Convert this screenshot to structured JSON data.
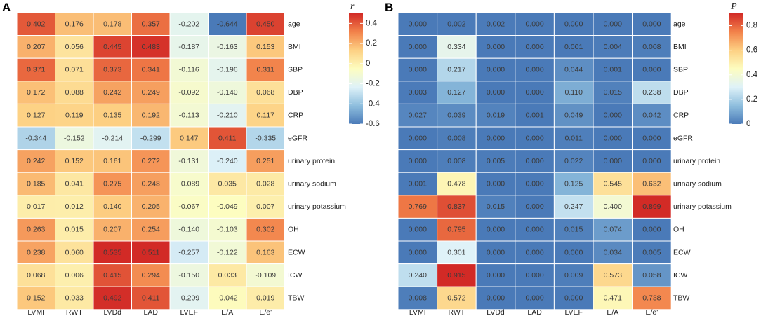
{
  "chart_data": [
    {
      "type": "heatmap",
      "panel": "A",
      "title": "",
      "legend_title": "r",
      "columns": [
        "LVMI",
        "RWT",
        "LVDd",
        "LAD",
        "LVEF",
        "E/A",
        "E/e'"
      ],
      "rows": [
        "age",
        "BMI",
        "SBP",
        "DBP",
        "CRP",
        "eGFR",
        "urinary protein",
        "urinary sodium",
        "urinary potassium",
        "OH",
        "ECW",
        "ICW",
        "TBW"
      ],
      "cell_labels": [
        [
          "0.402",
          "0.176",
          "0.178",
          "0.357",
          "-0.202",
          "-0.644",
          "0.450"
        ],
        [
          "0.207",
          "0.056",
          "0.445",
          "0.483",
          "-0.187",
          "-0.163",
          "0.153"
        ],
        [
          "0.371",
          "0.071",
          "0.373",
          "0.341",
          "-0.116",
          "-0.196",
          "0.311"
        ],
        [
          "0.172",
          "0.088",
          "0.242",
          "0.249",
          "-0.092",
          "-0.140",
          "0.068"
        ],
        [
          "0.127",
          "0.119",
          "0.135",
          "0.192",
          "-0.113",
          "-0.210",
          "0.117"
        ],
        [
          "-0.344",
          "-0.152",
          "-0.214",
          "-0.299",
          "0.147",
          "0.411",
          "-0.335"
        ],
        [
          "0.242",
          "0.152",
          "0.161",
          "0.272",
          "-0.131",
          "-0.240",
          "0.251"
        ],
        [
          "0.185",
          "0.041",
          "0.275",
          "0.248",
          "-0.089",
          "0.035",
          "0.028"
        ],
        [
          "0.017",
          "0.012",
          "0.140",
          "0.205",
          "-0.067",
          "-0.049",
          "0.007"
        ],
        [
          "0.263",
          "0.015",
          "0.207",
          "0.254",
          "-0.140",
          "-0.103",
          "0.302"
        ],
        [
          "0.238",
          "0.060",
          "0.535",
          "0.511",
          "-0.257",
          "-0.122",
          "0.163"
        ],
        [
          "0.068",
          "0.006",
          "0.415",
          "0.294",
          "-0.150",
          "0.033",
          "-0.109"
        ],
        [
          "0.152",
          "0.033",
          "0.492",
          "0.411",
          "-0.209",
          "-0.042",
          "0.019"
        ]
      ],
      "value_range": [
        -0.6,
        0.5
      ],
      "legend_ticks": [
        "0.4",
        "0.2",
        "0",
        "-0.2",
        "-0.4",
        "-0.6"
      ],
      "legend_tick_values": [
        0.4,
        0.2,
        0,
        -0.2,
        -0.4,
        -0.6
      ],
      "colorscale": [
        "#4a7ab8",
        "#8fbfde",
        "#dff2f8",
        "#fdfdc0",
        "#fdd083",
        "#f2824a",
        "#d22a26"
      ]
    },
    {
      "type": "heatmap",
      "panel": "B",
      "title": "",
      "legend_title": "P",
      "columns": [
        "LVMI",
        "RWT",
        "LVDd",
        "LAD",
        "LVEF",
        "E/A",
        "E/e'"
      ],
      "rows": [
        "age",
        "BMI",
        "SBP",
        "DBP",
        "CRP",
        "eGFR",
        "urinary protein",
        "urinary sodium",
        "urinary potassium",
        "OH",
        "ECW",
        "ICW",
        "TBW"
      ],
      "cell_labels": [
        [
          "0.000",
          "0.002",
          "0.002",
          "0.000",
          "0.000",
          "0.000",
          "0.000"
        ],
        [
          "0.000",
          "0.334",
          "0.000",
          "0.000",
          "0.001",
          "0.004",
          "0.008"
        ],
        [
          "0.000",
          "0.217",
          "0.000",
          "0.000",
          "0.044",
          "0.001",
          "0.000"
        ],
        [
          "0.003",
          "0.127",
          "0.000",
          "0.000",
          "0.110",
          "0.015",
          "0.238"
        ],
        [
          "0.027",
          "0.039",
          "0.019",
          "0.001",
          "0.049",
          "0.000",
          "0.042"
        ],
        [
          "0.000",
          "0.008",
          "0.000",
          "0.000",
          "0.011",
          "0.000",
          "0.000"
        ],
        [
          "0.000",
          "0.008",
          "0.005",
          "0.000",
          "0.022",
          "0.000",
          "0.000"
        ],
        [
          "0.001",
          "0.478",
          "0.000",
          "0.000",
          "0.125",
          "0.545",
          "0.632"
        ],
        [
          "0.769",
          "0.837",
          "0.015",
          "0.000",
          "0.247",
          "0.400",
          "0.899"
        ],
        [
          "0.000",
          "0.795",
          "0.000",
          "0.000",
          "0.015",
          "0.074",
          "0.000"
        ],
        [
          "0.000",
          "0.301",
          "0.000",
          "0.000",
          "0.000",
          "0.034",
          "0.005"
        ],
        [
          "0.240",
          "0.915",
          "0.000",
          "0.000",
          "0.009",
          "0.573",
          "0.058"
        ],
        [
          "0.008",
          "0.572",
          "0.000",
          "0.000",
          "0.000",
          "0.471",
          "0.738"
        ]
      ],
      "value_range": [
        0,
        0.9
      ],
      "legend_ticks": [
        "0.8",
        "0.6",
        "0.4",
        "0.2",
        "0"
      ],
      "legend_tick_values": [
        0.8,
        0.6,
        0.4,
        0.2,
        0
      ],
      "colorscale": [
        "#4a7ab8",
        "#8fbfde",
        "#dff2f8",
        "#fdfdc0",
        "#fdd083",
        "#f2824a",
        "#d22a26"
      ]
    }
  ]
}
